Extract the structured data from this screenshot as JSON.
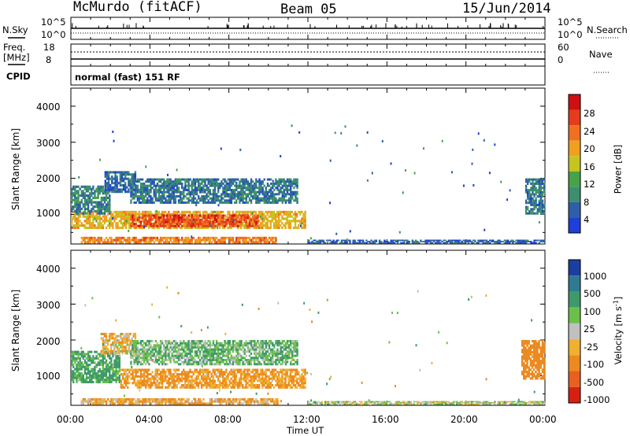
{
  "header": {
    "station": "McMurdo (fitACF)",
    "beam": "Beam 05",
    "date": "15/Jun/2014"
  },
  "noise_panel": {
    "left_label": "N.Sky",
    "left_ticks": [
      "10^5",
      "10^0"
    ],
    "right_label": "N.Search",
    "right_ticks": [
      "10^5",
      "10^0"
    ]
  },
  "freq_panel": {
    "label_line1": "Freq.",
    "label_line2": "[MHz]",
    "left_ticks": [
      "18",
      "8"
    ],
    "right_label": "Nave",
    "right_ticks": [
      "60",
      "0"
    ]
  },
  "cpid": {
    "label": "CPID",
    "value": "normal (fast) 151 RF"
  },
  "x_axis": {
    "label": "Time UT",
    "ticks": [
      "00:00",
      "04:00",
      "08:00",
      "12:00",
      "16:00",
      "20:00",
      "00:00"
    ]
  },
  "power_panel": {
    "ylabel": "Slant Range [km]",
    "yticks": [
      "4000",
      "3000",
      "2000",
      "1000"
    ],
    "colorbar_label": "Power [dB]",
    "colorbar_ticks": [
      "28",
      "24",
      "20",
      "16",
      "12",
      "8",
      "4"
    ]
  },
  "velocity_panel": {
    "ylabel": "Slant Range [km]",
    "yticks": [
      "4000",
      "3000",
      "2000",
      "1000"
    ],
    "colorbar_label": "Velocity [m s",
    "colorbar_label_sup": "-1",
    "colorbar_label_end": "]",
    "colorbar_ticks": [
      "1000",
      "500",
      "100",
      "25",
      "-25",
      "-100",
      "-500",
      "-1000"
    ]
  },
  "colors": {
    "power_scale": [
      "#1f3fd8",
      "#2e5fa8",
      "#3b8f6e",
      "#49a24a",
      "#c6c41e",
      "#f0a020",
      "#f07020",
      "#e43c1c",
      "#d01010"
    ],
    "velocity_scale": [
      "#1a3fa0",
      "#2f7a92",
      "#3e9a6a",
      "#6cc04a",
      "#c0c0c0",
      "#f0b030",
      "#ec8a20",
      "#e86020",
      "#d82010"
    ]
  },
  "chart_data": [
    {
      "type": "heatmap",
      "title": "Power",
      "xlabel": "Time UT",
      "ylabel": "Slant Range [km]",
      "xlim": [
        0,
        24
      ],
      "ylim": [
        180,
        4500
      ],
      "colorbar": {
        "label": "Power [dB]",
        "range": [
          0,
          32
        ],
        "ticks": [
          4,
          8,
          12,
          16,
          20,
          24,
          28
        ]
      },
      "regions": [
        {
          "time_start": 0.0,
          "time_end": 11.9,
          "range_start": 600,
          "range_end": 1100,
          "value": 18
        },
        {
          "time_start": 3.0,
          "time_end": 9.5,
          "range_start": 650,
          "range_end": 1000,
          "value": 26
        },
        {
          "time_start": 0.0,
          "time_end": 2.0,
          "range_start": 1000,
          "range_end": 1800,
          "value": 8
        },
        {
          "time_start": 1.7,
          "time_end": 3.3,
          "range_start": 1600,
          "range_end": 2200,
          "value": 6
        },
        {
          "time_start": 3.0,
          "time_end": 11.5,
          "range_start": 1300,
          "range_end": 2000,
          "value": 7
        },
        {
          "time_start": 0.5,
          "time_end": 10.5,
          "range_start": 200,
          "range_end": 380,
          "value": 22
        },
        {
          "time_start": 12.0,
          "time_end": 24.0,
          "range_start": 200,
          "range_end": 300,
          "value": 5
        },
        {
          "time_start": 23.0,
          "time_end": 24.0,
          "range_start": 1000,
          "range_end": 2000,
          "value": 7
        }
      ]
    },
    {
      "type": "heatmap",
      "title": "Velocity",
      "xlabel": "Time UT",
      "ylabel": "Slant Range [km]",
      "xlim": [
        0,
        24
      ],
      "ylim": [
        180,
        4500
      ],
      "colorbar": {
        "label": "Velocity [m s-1]",
        "ticks": [
          1000,
          500,
          100,
          25,
          -25,
          -100,
          -500,
          -1000
        ]
      },
      "regions": [
        {
          "time_start": 0.0,
          "time_end": 2.5,
          "range_start": 800,
          "range_end": 1700,
          "value": 150
        },
        {
          "time_start": 2.5,
          "time_end": 11.9,
          "range_start": 650,
          "range_end": 1200,
          "value": -120
        },
        {
          "time_start": 1.5,
          "time_end": 3.3,
          "range_start": 1600,
          "range_end": 2200,
          "value": -60
        },
        {
          "time_start": 3.0,
          "time_end": 11.5,
          "range_start": 1300,
          "range_end": 2000,
          "value": 80
        },
        {
          "time_start": 0.5,
          "time_end": 10.5,
          "range_start": 200,
          "range_end": 380,
          "value": -80
        },
        {
          "time_start": 12.0,
          "time_end": 24.0,
          "range_start": 200,
          "range_end": 300,
          "value": 20
        },
        {
          "time_start": 22.8,
          "time_end": 24.0,
          "range_start": 900,
          "range_end": 2000,
          "value": -200
        }
      ]
    }
  ]
}
